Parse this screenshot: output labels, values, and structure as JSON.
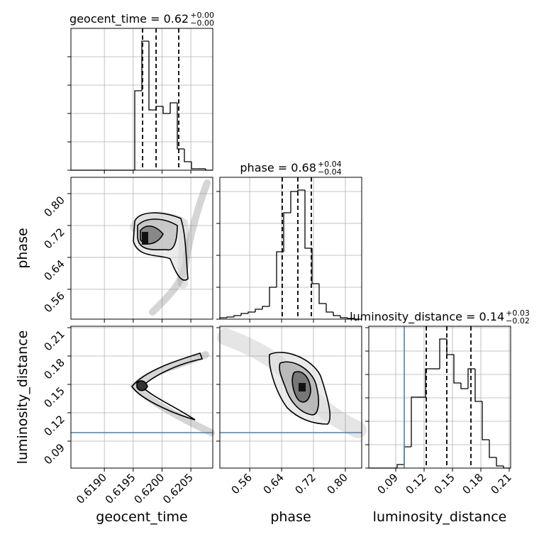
{
  "chart_data": {
    "type": "corner",
    "parameters": [
      {
        "label": "geocent_time",
        "title": "geocent_time = 0.62",
        "title_sup": "+0.00",
        "title_sub": "−0.00",
        "xlim": [
          0.61842,
          0.62088
        ],
        "ticks": [
          {
            "value": 0.619,
            "label": "0.6190"
          },
          0.6195,
          {
            "value": 0.62,
            "label": "0.6200"
          },
          0.6205
        ],
        "hist": {
          "counts": [
            0,
            0,
            0,
            0,
            0,
            0,
            0,
            0,
            0,
            112,
            182,
            85,
            90,
            80,
            95,
            30,
            12,
            2,
            2,
            0
          ],
          "ylim": [
            0,
            200
          ],
          "yticks": [
            0,
            40,
            80,
            120,
            160
          ]
        },
        "quantiles": [
          0.619663,
          0.619897,
          0.62029
        ]
      },
      {
        "label": "phase",
        "title": "phase = 0.68",
        "title_sup": "+0.04",
        "title_sub": "−0.04",
        "xlim": [
          0.485,
          0.841
        ],
        "ticks": [
          0.56,
          0.64,
          0.72,
          {
            "value": 0.8,
            "label": "0.80"
          }
        ],
        "hist": {
          "counts": [
            2,
            3,
            5,
            8,
            10,
            14,
            18,
            45,
            95,
            150,
            180,
            182,
            100,
            50,
            22,
            10,
            5,
            2,
            1,
            0
          ],
          "ylim": [
            0,
            200
          ],
          "yticks": [
            0,
            45,
            90,
            135,
            180
          ]
        },
        "quantiles": [
          0.6416,
          0.6807,
          0.7145
        ]
      },
      {
        "label": "luminosity_distance",
        "title": "luminosity_distance = 0.14",
        "title_sup": "+0.03",
        "title_sub": "−0.02",
        "xlim": [
          0.0615,
          0.2115
        ],
        "ticks": [
          0.09,
          0.12,
          0.15,
          0.18,
          0.21
        ],
        "hist": {
          "counts": [
            0,
            0,
            0,
            0,
            5,
            30,
            100,
            100,
            140,
            140,
            182,
            160,
            120,
            112,
            140,
            94,
            40,
            15,
            3,
            0
          ],
          "ylim": [
            0,
            200
          ],
          "yticks": [
            0,
            33,
            66,
            99,
            132,
            165,
            198
          ]
        },
        "quantiles": [
          0.1223,
          0.144,
          0.1695
        ],
        "truth": 0.099,
        "truth_color": "#4682b4"
      }
    ]
  }
}
